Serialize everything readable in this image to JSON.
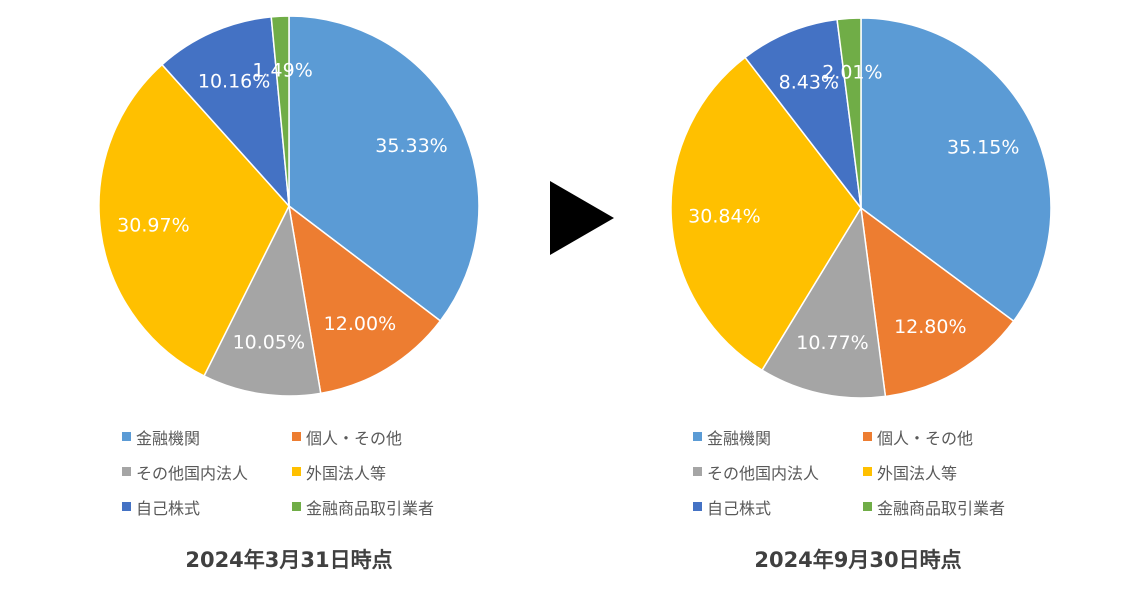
{
  "arrow": {
    "icon": "right-triangle-arrow-icon",
    "color": "#000000"
  },
  "chart_data": [
    {
      "type": "pie",
      "caption": "2024年3月31日時点",
      "categories": [
        "金融機関",
        "個人・その他",
        "その他国内法人",
        "外国法人等",
        "自己株式",
        "金融商品取引業者"
      ],
      "values": [
        35.33,
        12.0,
        10.05,
        30.97,
        10.16,
        1.49
      ],
      "labels": [
        "35.33%",
        "12.00%",
        "10.05%",
        "30.97%",
        "10.16%",
        "1.49%"
      ],
      "colors": [
        "#5B9BD5",
        "#ED7D31",
        "#A5A5A5",
        "#FFC000",
        "#4472C4",
        "#70AD47"
      ],
      "start_angle_deg": 0,
      "direction": "clockwise",
      "legend_position": "bottom"
    },
    {
      "type": "pie",
      "caption": "2024年9月30日時点",
      "categories": [
        "金融機関",
        "個人・その他",
        "その他国内法人",
        "外国法人等",
        "自己株式",
        "金融商品取引業者"
      ],
      "values": [
        35.15,
        12.8,
        10.77,
        30.84,
        8.43,
        2.01
      ],
      "labels": [
        "35.15%",
        "12.80%",
        "10.77%",
        "30.84%",
        "8.43%",
        "2.01%"
      ],
      "colors": [
        "#5B9BD5",
        "#ED7D31",
        "#A5A5A5",
        "#FFC000",
        "#4472C4",
        "#70AD47"
      ],
      "start_angle_deg": 0,
      "direction": "clockwise",
      "legend_position": "bottom"
    }
  ]
}
